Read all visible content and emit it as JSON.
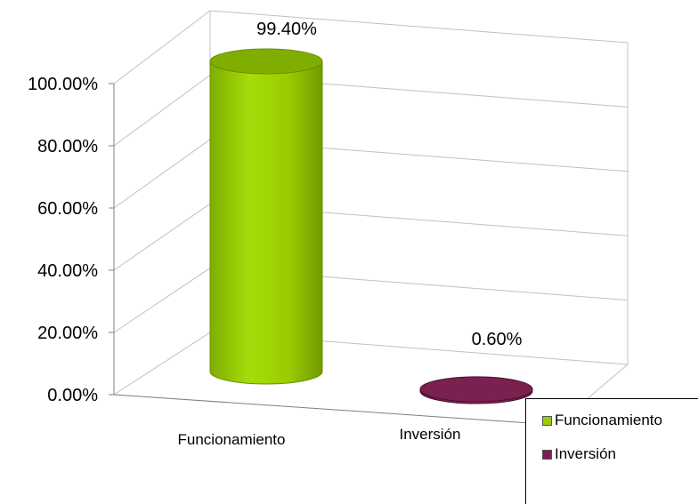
{
  "chart_data": {
    "type": "bar",
    "style": "3d-cylinder",
    "categories": [
      "Funcionamiento",
      "Inversión"
    ],
    "values": [
      99.4,
      0.6
    ],
    "data_labels": [
      "99.40%",
      "0.60%"
    ],
    "colors": [
      "#99cc00",
      "#7b2150"
    ],
    "y_ticks": [
      "0.00%",
      "20.00%",
      "40.00%",
      "60.00%",
      "80.00%",
      "100.00%"
    ],
    "ylim": [
      0,
      100
    ],
    "grid": true,
    "legend_position": "bottom-right",
    "legend": [
      {
        "label": "Funcionamiento",
        "color": "#99cc00"
      },
      {
        "label": "Inversión",
        "color": "#7b2150"
      }
    ]
  }
}
